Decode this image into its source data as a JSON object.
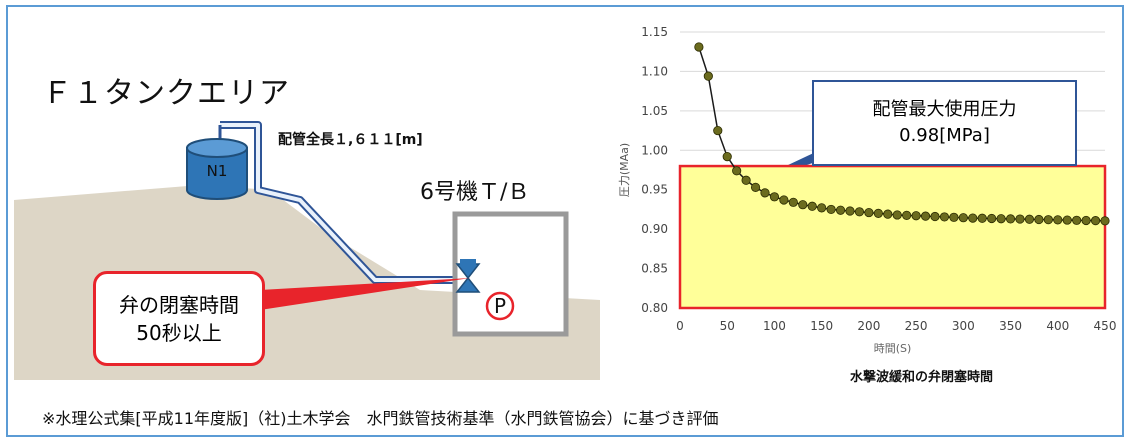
{
  "diagram": {
    "area_title": "Ｆ１タンクエリア",
    "tank_label": "N1",
    "pipe_length_label": "配管全長１,６１１[m]",
    "unit_label": "6号機Ｔ/Ｂ",
    "pump_label": "P",
    "valve_callout": [
      "弁の閉塞時間",
      "50秒以上"
    ],
    "max_pressure_callout": [
      "配管最大使用圧力",
      "0.98[MPa]"
    ],
    "footnote": "※水理公式集[平成11年度版]（社)土木学会　水門鉄管技術基準（水門鉄管協会）に基づき評価"
  },
  "chart_data": {
    "type": "scatter",
    "xlabel": "時間(S)",
    "ylabel": "圧力(MAa)",
    "title_below": "水撃波緩和の弁閉塞時間",
    "xlim": [
      0,
      450
    ],
    "ylim": [
      0.8,
      1.15
    ],
    "xticks": [
      0,
      50,
      100,
      150,
      200,
      250,
      300,
      350,
      400,
      450
    ],
    "yticks": [
      "0.80",
      "0.85",
      "0.90",
      "0.95",
      "1.00",
      "1.05",
      "1.10",
      "1.15"
    ],
    "highlight_band": {
      "from": 0.8,
      "to": 0.98,
      "fill": "#ffff99",
      "stroke": "#e8242b"
    },
    "series": [
      {
        "x": [
          20,
          30,
          40,
          50,
          60,
          70,
          80,
          90,
          100,
          110,
          120,
          130,
          140,
          150,
          160,
          170,
          180,
          190,
          200,
          210,
          220,
          230,
          240,
          250,
          260,
          270,
          280,
          290,
          300,
          310,
          320,
          330,
          340,
          350,
          360,
          370,
          380,
          390,
          400,
          410,
          420,
          430,
          440,
          450
        ],
        "y": [
          1.131,
          1.094,
          1.025,
          0.992,
          0.974,
          0.962,
          0.953,
          0.946,
          0.941,
          0.937,
          0.934,
          0.931,
          0.929,
          0.927,
          0.925,
          0.924,
          0.923,
          0.922,
          0.921,
          0.92,
          0.919,
          0.918,
          0.9175,
          0.917,
          0.9165,
          0.916,
          0.9155,
          0.915,
          0.9145,
          0.914,
          0.9138,
          0.9135,
          0.9132,
          0.913,
          0.9128,
          0.9125,
          0.9122,
          0.912,
          0.9118,
          0.9115,
          0.9112,
          0.911,
          0.9108,
          0.9105
        ]
      }
    ],
    "colors": {
      "marker": "#6b6b1e",
      "line": "#1a1a1a",
      "grid": "#d9d9d9"
    }
  }
}
